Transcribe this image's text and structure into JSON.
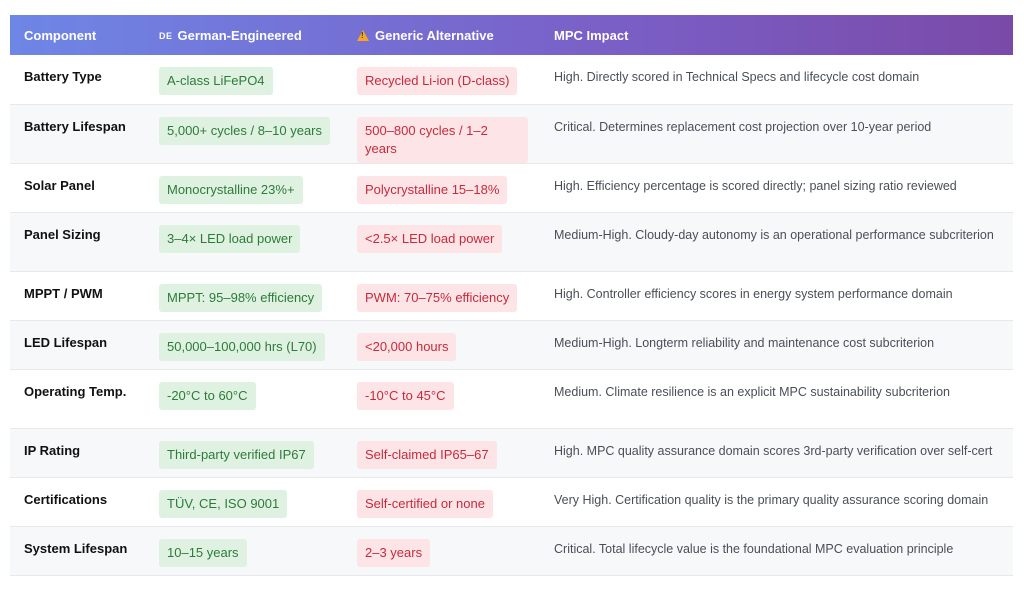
{
  "header": {
    "component": "Component",
    "german_flag": "DE",
    "german": "German-Engineered",
    "generic": "Generic Alternative",
    "impact": "MPC Impact"
  },
  "rows": [
    {
      "component": "Battery Type",
      "german": "A-class LiFePO4",
      "generic": "Recycled Li-ion (D-class)",
      "impact": "High. Directly scored in Technical Specs and lifecycle cost domain"
    },
    {
      "component": "Battery Lifespan",
      "german": "5,000+ cycles / 8–10 years",
      "generic": "500–800 cycles / 1–2 years",
      "impact": "Critical. Determines replacement cost projection over 10-year period"
    },
    {
      "component": "Solar Panel",
      "german": "Monocrystalline 23%+",
      "generic": "Polycrystalline 15–18%",
      "impact": "High. Efficiency percentage is scored directly; panel sizing ratio reviewed"
    },
    {
      "component": "Panel Sizing",
      "german": "3–4× LED load power",
      "generic": "<2.5× LED load power",
      "impact": "Medium-High. Cloudy-day autonomy is an operational performance subcriterion"
    },
    {
      "component": "MPPT / PWM",
      "german": "MPPT: 95–98% efficiency",
      "generic": "PWM: 70–75% efficiency",
      "impact": "High. Controller efficiency scores in energy system performance domain"
    },
    {
      "component": "LED Lifespan",
      "german": "50,000–100,000 hrs (L70)",
      "generic": "<20,000 hours",
      "impact": "Medium-High. Longterm reliability and maintenance cost subcriterion"
    },
    {
      "component": "Operating Temp.",
      "german": "-20°C to 60°C",
      "generic": "-10°C to 45°C",
      "impact": "Medium. Climate resilience is an explicit MPC sustainability subcriterion"
    },
    {
      "component": "IP Rating",
      "german": "Third-party verified IP67",
      "generic": "Self-claimed IP65–67",
      "impact": "High. MPC quality assurance domain scores 3rd-party verification over self-cert"
    },
    {
      "component": "Certifications",
      "german": "TÜV, CE, ISO 9001",
      "generic": "Self-certified or none",
      "impact": "Very High. Certification quality is the primary quality assurance scoring domain"
    },
    {
      "component": "System Lifespan",
      "german": "10–15 years",
      "generic": "2–3 years",
      "impact": "Critical. Total lifecycle value is the foundational MPC evaluation principle"
    }
  ]
}
